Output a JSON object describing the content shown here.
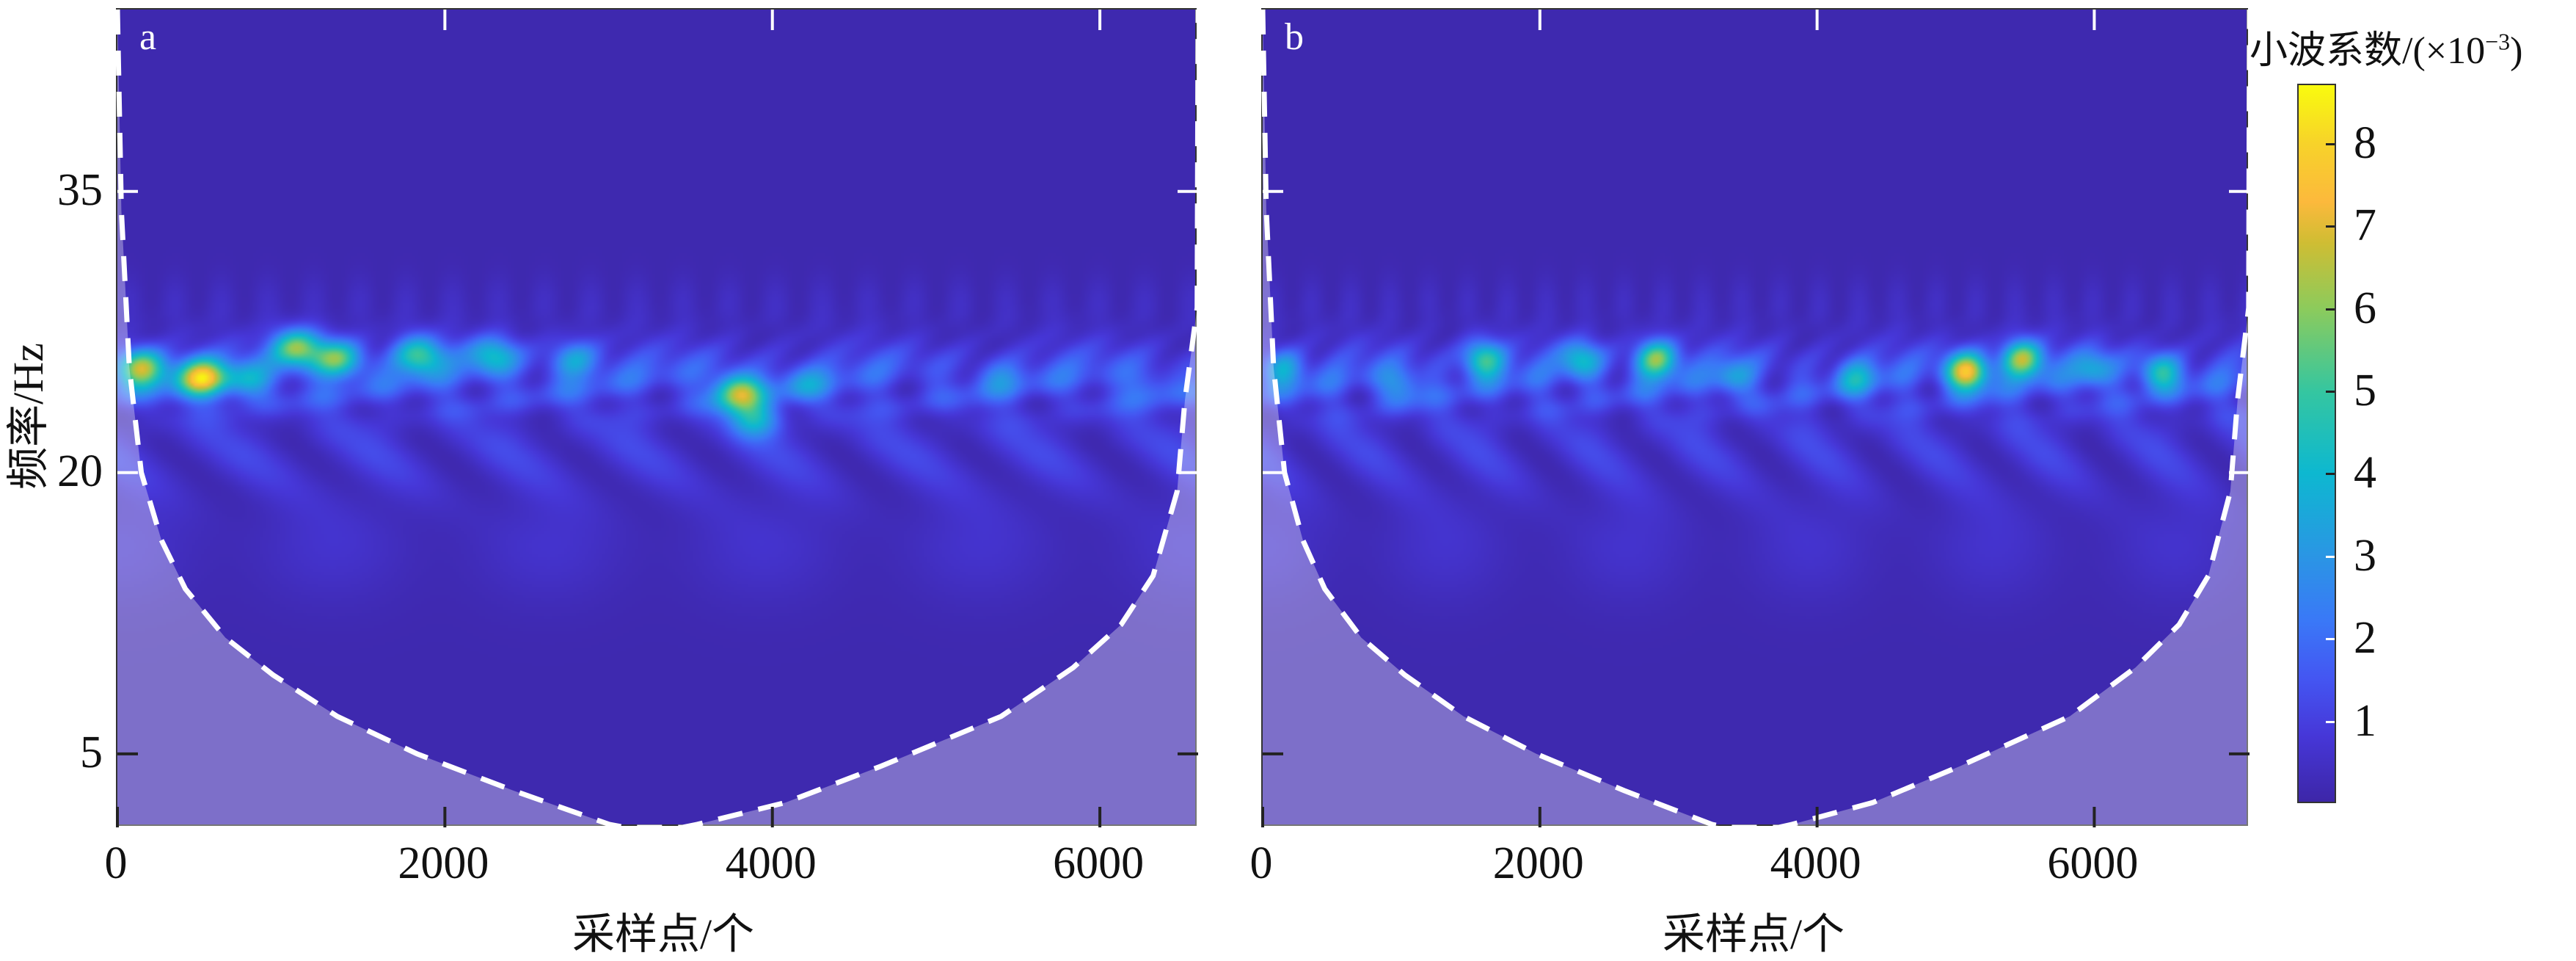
{
  "figure": {
    "colorbar_title": "小波系数/(×10",
    "colorbar_exp": "−3",
    "colorbar_close": ")"
  },
  "colormap": [
    [
      0.0,
      "#3d26a8"
    ],
    [
      0.8,
      "#4637d8"
    ],
    [
      1.5,
      "#4456f2"
    ],
    [
      2.2,
      "#3a78f7"
    ],
    [
      3.0,
      "#2a96e4"
    ],
    [
      4.0,
      "#0db8d0"
    ],
    [
      5.0,
      "#35c6a0"
    ],
    [
      6.0,
      "#8ccb5c"
    ],
    [
      6.8,
      "#cfbd33"
    ],
    [
      7.3,
      "#fcb93c"
    ],
    [
      8.0,
      "#f7d22a"
    ],
    [
      8.72,
      "#f9fb0e"
    ]
  ],
  "colorbar": {
    "ticks": [
      1,
      2,
      3,
      4,
      5,
      6,
      7,
      8
    ],
    "range": [
      0,
      8.72
    ]
  },
  "chart_data": [
    {
      "type": "heatmap",
      "panel_label": "a",
      "xlabel": "采样点/个",
      "ylabel": "频率/Hz",
      "xlim": [
        0,
        6600
      ],
      "ylim": [
        1.08,
        44.7
      ],
      "xticks": [
        0,
        2000,
        4000,
        6000
      ],
      "yticks": [
        5,
        20,
        35
      ],
      "show_ytick_labels": true,
      "band_center_hz": 25,
      "hotspots": [
        [
          150,
          25.5,
          7.6
        ],
        [
          520,
          25,
          8.2
        ],
        [
          1100,
          26.6,
          7.2
        ],
        [
          1350,
          26,
          6.8
        ],
        [
          1850,
          26.2,
          6.2
        ],
        [
          2300,
          26.2,
          5.2
        ],
        [
          2800,
          26,
          4.6
        ],
        [
          3800,
          24.2,
          7.2
        ],
        [
          3900,
          22.8,
          5.2
        ],
        [
          4200,
          24.6,
          3.6
        ],
        [
          5400,
          25,
          3.2
        ],
        [
          6300,
          24.5,
          3.2
        ],
        [
          800,
          24.8,
          4.2
        ]
      ],
      "coi": [
        [
          0,
          44.7
        ],
        [
          24,
          34.0
        ],
        [
          73,
          25.6
        ],
        [
          146,
          20.0
        ],
        [
          269,
          16.4
        ],
        [
          415,
          13.8
        ],
        [
          659,
          11.2
        ],
        [
          952,
          9.2
        ],
        [
          1343,
          7.0
        ],
        [
          1831,
          5.0
        ],
        [
          2418,
          3.04
        ],
        [
          3004,
          1.24
        ],
        [
          3100,
          1.08
        ],
        [
          3450,
          1.08
        ],
        [
          3541,
          1.24
        ],
        [
          4079,
          2.4
        ],
        [
          4665,
          4.35
        ],
        [
          5397,
          7.0
        ],
        [
          5837,
          9.6
        ],
        [
          6130,
          11.9
        ],
        [
          6325,
          14.5
        ],
        [
          6472,
          19.0
        ],
        [
          6520,
          23.9
        ],
        [
          6594,
          28.8
        ],
        [
          6600,
          44.7
        ]
      ]
    },
    {
      "type": "heatmap",
      "panel_label": "b",
      "xlabel": "采样点/个",
      "ylabel": "",
      "xlim": [
        0,
        7120
      ],
      "ylim": [
        1.08,
        44.7
      ],
      "xticks": [
        0,
        2000,
        4000,
        6000
      ],
      "yticks": [
        5,
        20,
        35
      ],
      "show_ytick_labels": false,
      "band_center_hz": 25,
      "hotspots": [
        [
          150,
          25.5,
          4.6
        ],
        [
          1000,
          24.5,
          4.0
        ],
        [
          1600,
          26,
          6.2
        ],
        [
          2300,
          26,
          5.0
        ],
        [
          2850,
          26,
          7.2
        ],
        [
          3400,
          25,
          3.8
        ],
        [
          4300,
          25,
          4.2
        ],
        [
          5100,
          25.3,
          8.6
        ],
        [
          5500,
          26,
          7.6
        ],
        [
          6000,
          25.5,
          4.2
        ],
        [
          6500,
          25.3,
          5.6
        ]
      ],
      "coi": [
        [
          0,
          44.7
        ],
        [
          26,
          34.0
        ],
        [
          79,
          25.6
        ],
        [
          158,
          20.0
        ],
        [
          290,
          16.4
        ],
        [
          448,
          13.8
        ],
        [
          711,
          11.2
        ],
        [
          1027,
          9.2
        ],
        [
          1449,
          7.0
        ],
        [
          1975,
          5.0
        ],
        [
          2608,
          3.04
        ],
        [
          3241,
          1.24
        ],
        [
          3345,
          1.08
        ],
        [
          3722,
          1.08
        ],
        [
          3820,
          1.24
        ],
        [
          4400,
          2.4
        ],
        [
          5033,
          4.35
        ],
        [
          5823,
          7.0
        ],
        [
          6297,
          9.6
        ],
        [
          6613,
          11.9
        ],
        [
          6823,
          14.5
        ],
        [
          6982,
          19.0
        ],
        [
          7034,
          23.9
        ],
        [
          7114,
          28.8
        ],
        [
          7120,
          44.7
        ]
      ]
    }
  ]
}
